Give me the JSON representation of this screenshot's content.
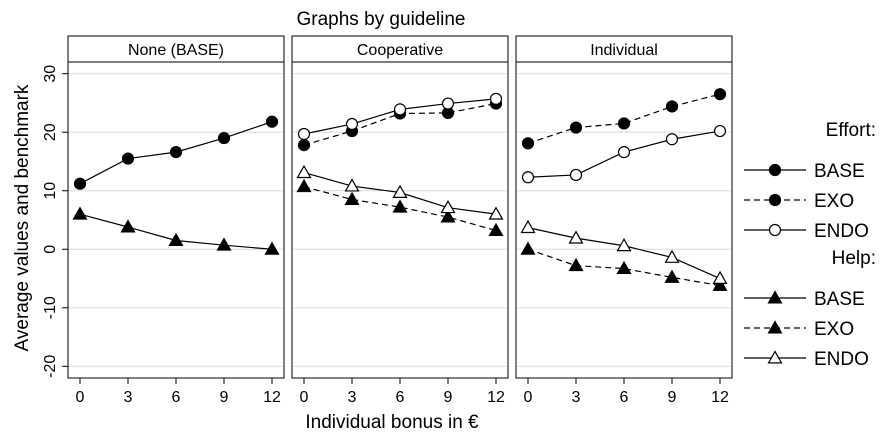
{
  "chart_data": {
    "type": "line",
    "title": "Graphs by guideline",
    "xlabel": "Individual bonus in €",
    "ylabel": "Average values and benchmark",
    "x": [
      0,
      3,
      6,
      9,
      12
    ],
    "xticks": [
      "0",
      "3",
      "6",
      "9",
      "12"
    ],
    "yticks": [
      -20,
      -10,
      0,
      10,
      20,
      30
    ],
    "ylim": [
      -22,
      32
    ],
    "grid": true,
    "legend_position": "right",
    "legend_groups": [
      {
        "title": "Effort:",
        "entries": [
          "BASE",
          "EXO",
          "ENDO"
        ]
      },
      {
        "title": "Help:",
        "entries": [
          "BASE",
          "EXO",
          "ENDO"
        ]
      }
    ],
    "panels": [
      {
        "title": "None (BASE)",
        "series": [
          {
            "group": "Effort",
            "name": "BASE",
            "marker": "filled-circle",
            "dash": "solid",
            "values": [
              11.2,
              15.5,
              16.6,
              19.0,
              21.8
            ]
          },
          {
            "group": "Help",
            "name": "BASE",
            "marker": "filled-triangle",
            "dash": "solid",
            "values": [
              6.0,
              3.8,
              1.5,
              0.7,
              0.0
            ]
          }
        ]
      },
      {
        "title": "Cooperative",
        "series": [
          {
            "group": "Effort",
            "name": "EXO",
            "marker": "filled-circle",
            "dash": "dashed",
            "values": [
              17.8,
              20.2,
              23.2,
              23.3,
              24.9
            ]
          },
          {
            "group": "Effort",
            "name": "ENDO",
            "marker": "open-circle",
            "dash": "solid",
            "values": [
              19.7,
              21.4,
              23.9,
              24.9,
              25.7
            ]
          },
          {
            "group": "Help",
            "name": "EXO",
            "marker": "filled-triangle",
            "dash": "dashed",
            "values": [
              10.7,
              8.5,
              7.2,
              5.5,
              3.2
            ]
          },
          {
            "group": "Help",
            "name": "ENDO",
            "marker": "open-triangle",
            "dash": "solid",
            "values": [
              13.1,
              10.8,
              9.7,
              7.1,
              6.0
            ]
          }
        ]
      },
      {
        "title": "Individual",
        "series": [
          {
            "group": "Effort",
            "name": "EXO",
            "marker": "filled-circle",
            "dash": "dashed",
            "values": [
              18.1,
              20.8,
              21.5,
              24.4,
              26.5
            ]
          },
          {
            "group": "Effort",
            "name": "ENDO",
            "marker": "open-circle",
            "dash": "solid",
            "values": [
              12.3,
              12.7,
              16.6,
              18.8,
              20.2
            ]
          },
          {
            "group": "Help",
            "name": "EXO",
            "marker": "filled-triangle",
            "dash": "dashed",
            "values": [
              0.0,
              -2.8,
              -3.3,
              -4.8,
              -6.2
            ]
          },
          {
            "group": "Help",
            "name": "ENDO",
            "marker": "open-triangle",
            "dash": "solid",
            "values": [
              3.7,
              1.9,
              0.6,
              -1.4,
              -5.0
            ]
          }
        ]
      }
    ]
  }
}
